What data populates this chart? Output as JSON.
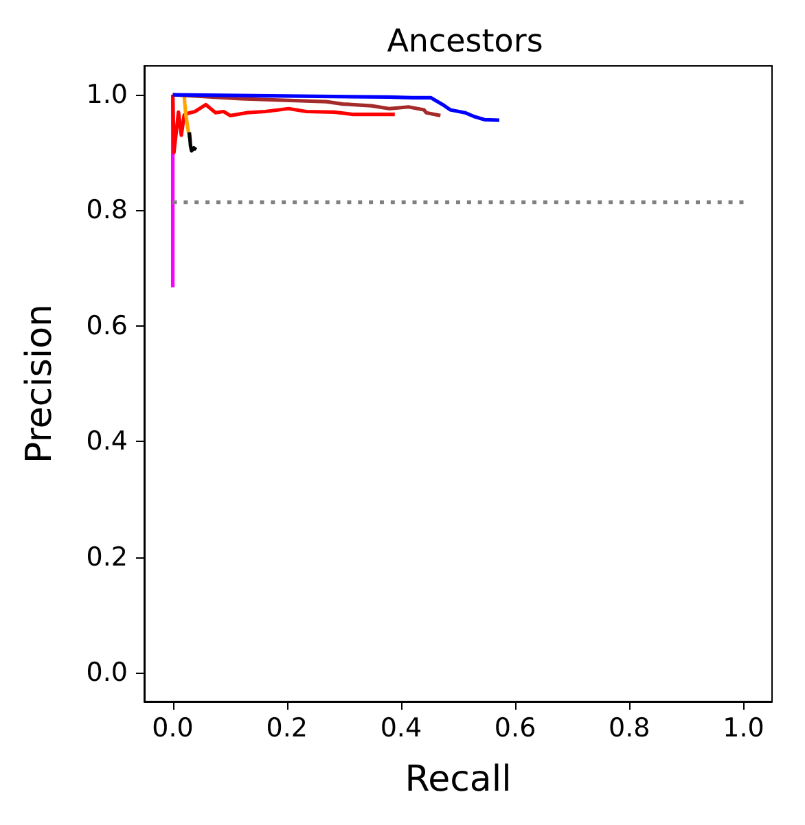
{
  "chart_data": {
    "type": "line",
    "title": "Ancestors",
    "xlabel": "Recall",
    "ylabel": "Precision",
    "xlim": [
      -0.05,
      1.05
    ],
    "ylim": [
      -0.05,
      1.05
    ],
    "xticks": [
      {
        "value": 0,
        "label": "0.0"
      },
      0.2,
      0.4,
      0.6,
      0.8,
      {
        "value": 1,
        "label": "1.0"
      }
    ],
    "yticks": [
      {
        "value": 0,
        "label": "0.0"
      },
      0.2,
      0.4,
      0.6,
      0.8,
      {
        "value": 1,
        "label": "1.0"
      }
    ],
    "marker": "none",
    "series": [
      {
        "color": "#ff00ff",
        "x": [
          0,
          0
        ],
        "values": [
          1.0,
          0.667
        ]
      },
      {
        "color": "#ff0000",
        "x": [
          0,
          0.002,
          0.01,
          0.015,
          0.02,
          0.027,
          0.039,
          0.058,
          0.075,
          0.089,
          0.101,
          0.13,
          0.162,
          0.203,
          0.234,
          0.283,
          0.316,
          0.348,
          0.389
        ],
        "values": [
          1.0,
          0.9,
          0.97,
          0.93,
          0.965,
          0.968,
          0.971,
          0.983,
          0.969,
          0.971,
          0.964,
          0.969,
          0.971,
          0.976,
          0.971,
          0.97,
          0.966,
          0.966,
          0.966
        ]
      },
      {
        "color": "#ffa500",
        "x": [
          0.02,
          0.021,
          0.023,
          0.026,
          0.029
        ],
        "values": [
          1.0,
          0.985,
          0.965,
          0.945,
          0.925
        ]
      },
      {
        "color": "#000000",
        "x": [
          0.029,
          0.03,
          0.031,
          0.033,
          0.037,
          0.041
        ],
        "values": [
          0.935,
          0.925,
          0.912,
          0.903,
          0.908,
          0.905
        ]
      },
      {
        "color": "#a52a2a",
        "x": [
          0,
          0.12,
          0.269,
          0.298,
          0.348,
          0.379,
          0.413,
          0.44,
          0.444,
          0.469
        ],
        "values": [
          1.0,
          0.993,
          0.988,
          0.984,
          0.981,
          0.976,
          0.979,
          0.974,
          0.969,
          0.964
        ]
      },
      {
        "color": "#0000ff",
        "x": [
          0,
          0.379,
          0.42,
          0.452,
          0.473,
          0.486,
          0.512,
          0.529,
          0.546,
          0.572
        ],
        "values": [
          1.0,
          0.996,
          0.995,
          0.995,
          0.983,
          0.974,
          0.969,
          0.962,
          0.957,
          0.956
        ]
      },
      {
        "color": "#808080",
        "line_style": "dotted",
        "x": [
          0,
          1
        ],
        "values": [
          0.814,
          0.814
        ]
      }
    ]
  }
}
